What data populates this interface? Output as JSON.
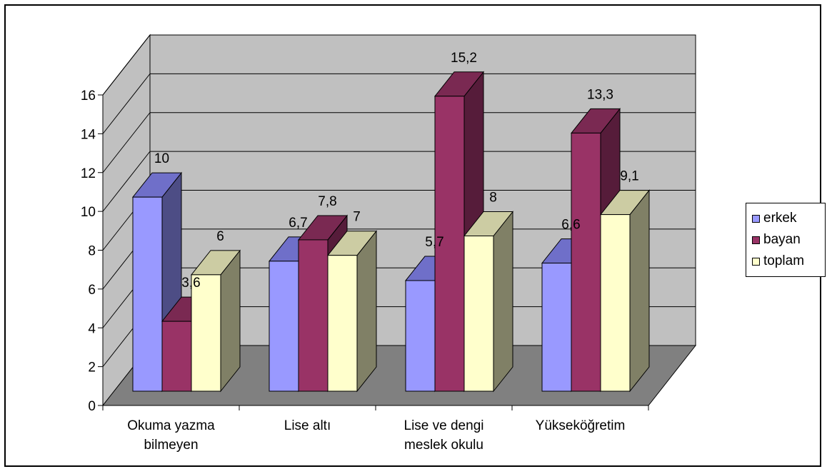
{
  "chart_data": {
    "type": "bar",
    "title": "",
    "xlabel": "",
    "ylabel": "",
    "ylim": [
      0,
      16
    ],
    "yticks": [
      0,
      2,
      4,
      6,
      8,
      10,
      12,
      14,
      16
    ],
    "categories": [
      {
        "lines": [
          "Okuma yazma",
          "bilmeyen"
        ]
      },
      {
        "lines": [
          "Lise altı"
        ]
      },
      {
        "lines": [
          "Lise ve dengi",
          "meslek okulu"
        ]
      },
      {
        "lines": [
          "Yükseköğretim"
        ]
      }
    ],
    "series": [
      {
        "name": "erkek",
        "values": [
          10,
          6.7,
          5.7,
          6.6
        ],
        "labels": [
          "10",
          "6,7",
          "5,7",
          "6,6"
        ],
        "color": "#9999ff",
        "top": "#6f6fc9",
        "side": "#4d4d85"
      },
      {
        "name": "bayan",
        "values": [
          3.6,
          7.8,
          15.2,
          13.3
        ],
        "labels": [
          "3,6",
          "7,8",
          "15,2",
          "13,3"
        ],
        "color": "#993366",
        "top": "#7a2952",
        "side": "#561c3a"
      },
      {
        "name": "toplam",
        "values": [
          6,
          7,
          8,
          9.1
        ],
        "labels": [
          "6",
          "7",
          "8",
          "9,1"
        ],
        "color": "#ffffcc",
        "top": "#cccca3",
        "side": "#808066"
      }
    ],
    "legend": "right",
    "grid": true,
    "colors": {
      "wall": "#c0c0c0",
      "floor": "#808080",
      "grid": "#000000"
    }
  }
}
